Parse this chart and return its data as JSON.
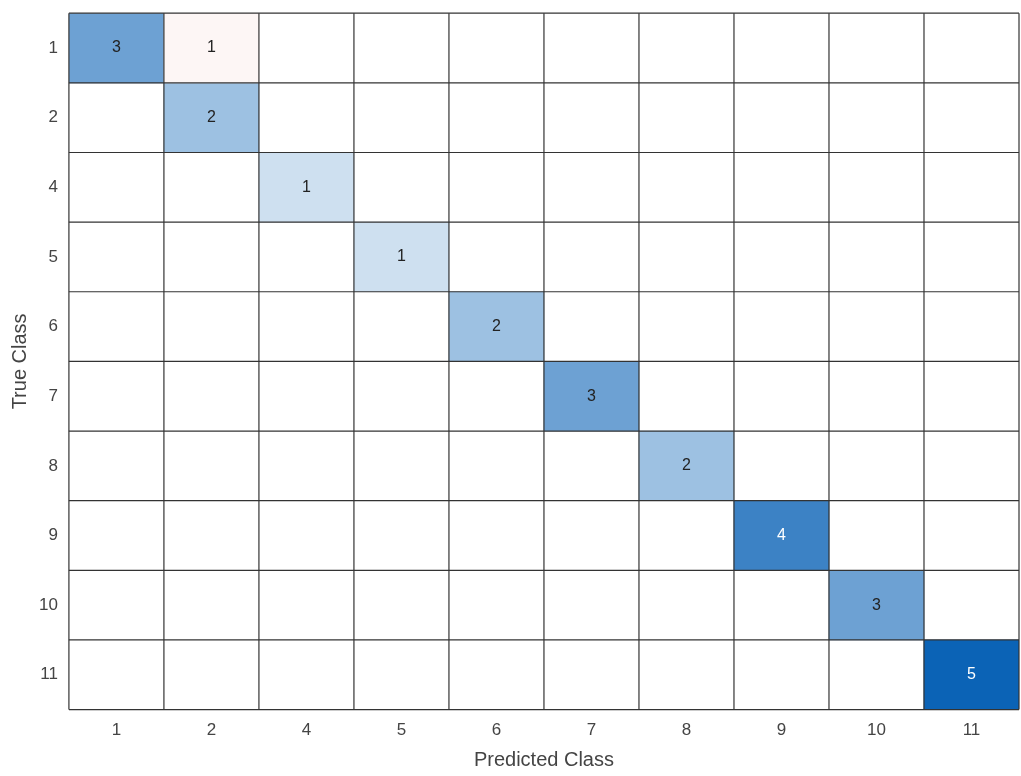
{
  "chart_data": {
    "type": "heatmap",
    "xlabel": "Predicted Class",
    "ylabel": "True Class",
    "categories": [
      "1",
      "2",
      "4",
      "5",
      "6",
      "7",
      "8",
      "9",
      "10",
      "11"
    ],
    "y_categories": [
      "1",
      "2",
      "4",
      "5",
      "6",
      "7",
      "8",
      "9",
      "10",
      "11"
    ],
    "cells": [
      [
        3,
        1,
        null,
        null,
        null,
        null,
        null,
        null,
        null,
        null
      ],
      [
        null,
        2,
        null,
        null,
        null,
        null,
        null,
        null,
        null,
        null
      ],
      [
        null,
        null,
        1,
        null,
        null,
        null,
        null,
        null,
        null,
        null
      ],
      [
        null,
        null,
        null,
        1,
        null,
        null,
        null,
        null,
        null,
        null
      ],
      [
        null,
        null,
        null,
        null,
        2,
        null,
        null,
        null,
        null,
        null
      ],
      [
        null,
        null,
        null,
        null,
        null,
        3,
        null,
        null,
        null,
        null
      ],
      [
        null,
        null,
        null,
        null,
        null,
        null,
        2,
        null,
        null,
        null
      ],
      [
        null,
        null,
        null,
        null,
        null,
        null,
        null,
        4,
        null,
        null
      ],
      [
        null,
        null,
        null,
        null,
        null,
        null,
        null,
        null,
        3,
        null
      ],
      [
        null,
        null,
        null,
        null,
        null,
        null,
        null,
        null,
        null,
        5
      ]
    ],
    "data_labels": true
  }
}
